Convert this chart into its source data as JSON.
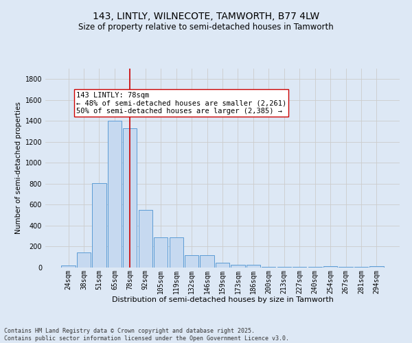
{
  "title": "143, LINTLY, WILNECOTE, TAMWORTH, B77 4LW",
  "subtitle": "Size of property relative to semi-detached houses in Tamworth",
  "xlabel": "Distribution of semi-detached houses by size in Tamworth",
  "ylabel": "Number of semi-detached properties",
  "footnote": "Contains HM Land Registry data © Crown copyright and database right 2025.\nContains public sector information licensed under the Open Government Licence v3.0.",
  "bar_labels": [
    "24sqm",
    "38sqm",
    "51sqm",
    "65sqm",
    "78sqm",
    "92sqm",
    "105sqm",
    "119sqm",
    "132sqm",
    "146sqm",
    "159sqm",
    "173sqm",
    "186sqm",
    "200sqm",
    "213sqm",
    "227sqm",
    "240sqm",
    "254sqm",
    "267sqm",
    "281sqm",
    "294sqm"
  ],
  "bar_values": [
    20,
    145,
    805,
    1400,
    1330,
    550,
    290,
    290,
    120,
    120,
    45,
    25,
    25,
    5,
    5,
    5,
    5,
    10,
    5,
    5,
    15
  ],
  "bar_color": "#c6d9f0",
  "bar_edge_color": "#5b9bd5",
  "property_label": "143 LINTLY: 78sqm",
  "annotation_line1": "← 48% of semi-detached houses are smaller (2,261)",
  "annotation_line2": "50% of semi-detached houses are larger (2,385) →",
  "vline_color": "#cc0000",
  "vline_x_index": 4,
  "annotation_box_color": "#ffffff",
  "annotation_box_edge": "#cc0000",
  "ylim": [
    0,
    1900
  ],
  "yticks": [
    0,
    200,
    400,
    600,
    800,
    1000,
    1200,
    1400,
    1600,
    1800
  ],
  "grid_color": "#cccccc",
  "background_color": "#dde8f5",
  "title_fontsize": 10,
  "subtitle_fontsize": 8.5,
  "xlabel_fontsize": 8,
  "ylabel_fontsize": 7.5,
  "tick_fontsize": 7,
  "annotation_fontsize": 7.5,
  "footnote_fontsize": 6
}
